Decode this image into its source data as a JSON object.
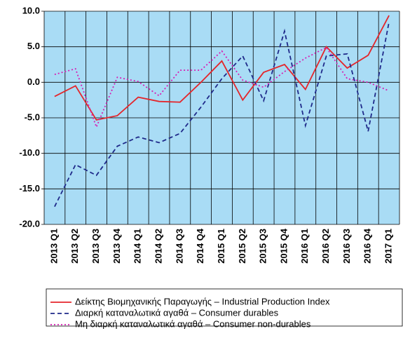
{
  "chart_data": {
    "type": "line",
    "categories": [
      "2013 Q1",
      "2013 Q2",
      "2013 Q3",
      "2013 Q4",
      "2014 Q1",
      "2014 Q2",
      "2014 Q3",
      "2014 Q4",
      "2015 Q1",
      "2015 Q2",
      "2015 Q3",
      "2015 Q4",
      "2016 Q1",
      "2016 Q2",
      "2016 Q3",
      "2016 Q4",
      "2017 Q1"
    ],
    "series": [
      {
        "name": "Δείκτης Βιομηχανικής Παραγωγής – Industrial Production Index",
        "color": "#e4262b",
        "dash": "solid",
        "values": [
          -2.0,
          -0.5,
          -5.3,
          -4.7,
          -2.1,
          -2.7,
          -2.8,
          0.0,
          3.0,
          -2.5,
          1.4,
          2.5,
          -1.0,
          5.0,
          2.0,
          3.8,
          9.4
        ]
      },
      {
        "name": "Διαρκή καταναλωτικά αγαθά – Consumer durables",
        "color": "#1f2a8a",
        "dash": "dashed",
        "values": [
          -17.5,
          -11.6,
          -13.1,
          -9.0,
          -7.7,
          -8.5,
          -7.2,
          -3.5,
          0.5,
          3.7,
          -2.6,
          7.2,
          -6.1,
          3.7,
          4.0,
          -6.9,
          8.5
        ]
      },
      {
        "name": "Μη διαρκή καταναλωτικά αγαθά – Consumer non-durables",
        "color": "#d61fb4",
        "dash": "dotted",
        "values": [
          1.1,
          1.9,
          -6.3,
          0.7,
          0.1,
          -1.9,
          1.7,
          1.7,
          4.4,
          0.3,
          -0.7,
          1.5,
          3.4,
          4.9,
          0.5,
          0.0,
          -1.2
        ]
      }
    ],
    "ylim": [
      -20,
      10
    ],
    "yticks": [
      {
        "value": -20,
        "label": "-20.0"
      },
      {
        "value": -15,
        "label": "-15.0"
      },
      {
        "value": -10,
        "label": "-10.0"
      },
      {
        "value": -5,
        "label": "-5.0"
      },
      {
        "value": 0,
        "label": "0.0"
      },
      {
        "value": 5,
        "label": "5.0"
      },
      {
        "value": 10,
        "label": "10.0"
      }
    ],
    "grid": true,
    "background": "#a9dcf5"
  }
}
